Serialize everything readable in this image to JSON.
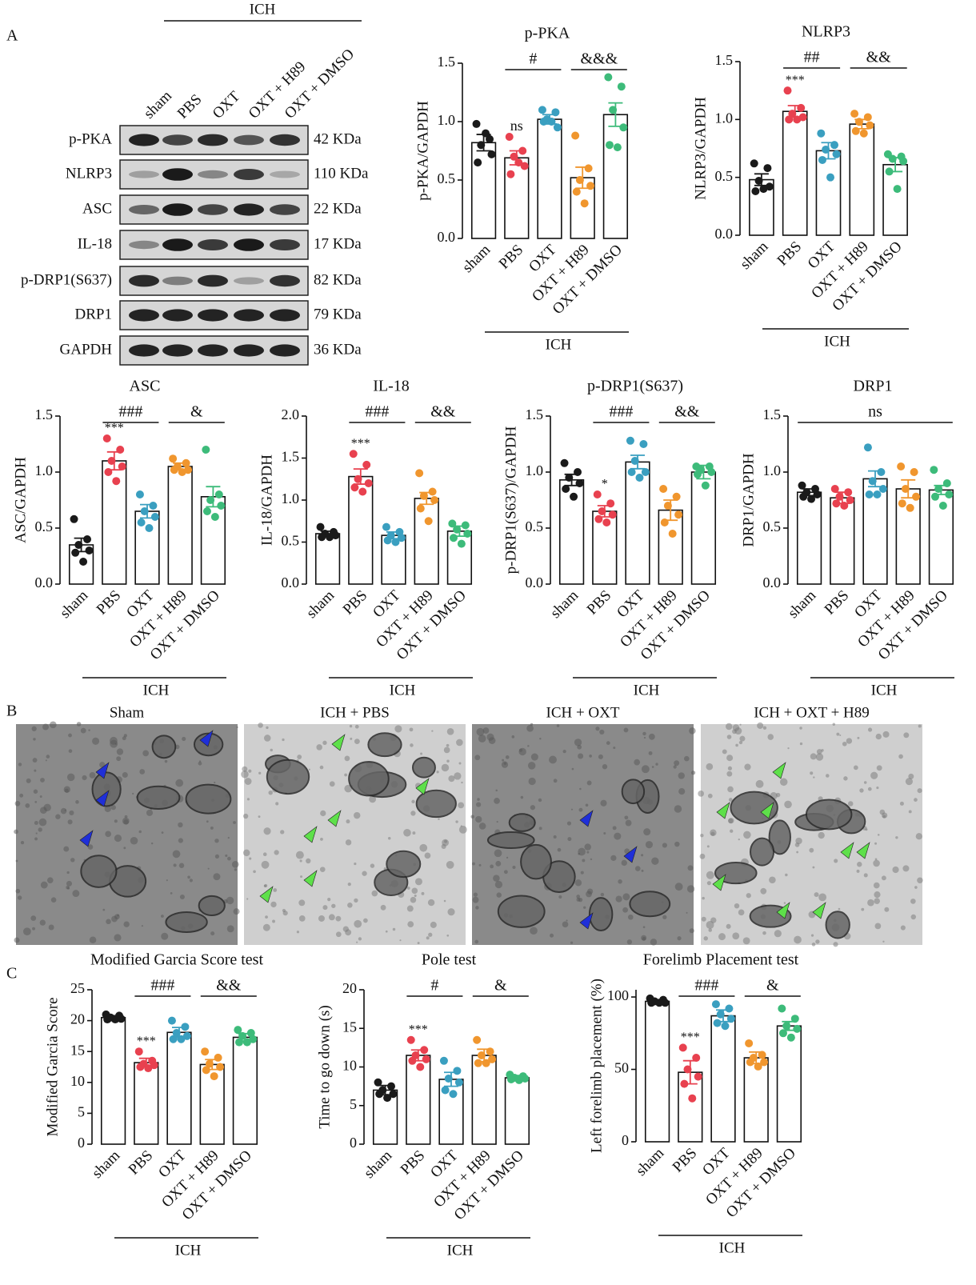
{
  "panel_labels": [
    "A",
    "B",
    "C"
  ],
  "blot": {
    "group_label": "ICH",
    "lanes": [
      "sham",
      "PBS",
      "OXT",
      "OXT + H89",
      "OXT + DMSO"
    ],
    "rows": [
      {
        "name": "p-PKA",
        "size": "42 KDa"
      },
      {
        "name": "NLRP3",
        "size": "110 KDa"
      },
      {
        "name": "ASC",
        "size": "22 KDa"
      },
      {
        "name": "IL-18",
        "size": "17 KDa"
      },
      {
        "name": "p-DRP1(S637)",
        "size": "82 KDa"
      },
      {
        "name": "DRP1",
        "size": "79 KDa"
      },
      {
        "name": "GAPDH",
        "size": "36 KDa"
      }
    ]
  },
  "em": {
    "titles": [
      "Sham",
      "ICH + PBS",
      "ICH + OXT",
      "ICH + OXT + H89"
    ]
  },
  "chart_data": [
    {
      "type": "bar",
      "title": "p-PKA",
      "ylabel": "p-PKA/GAPDH",
      "group_label": "ICH",
      "categories": [
        "sham",
        "PBS",
        "OXT",
        "OXT + H89",
        "OXT + DMSO"
      ],
      "colors": [
        "#1a1a1a",
        "#e8414f",
        "#3a9fc0",
        "#f0962e",
        "#3dbb7a"
      ],
      "values": [
        0.82,
        0.69,
        1.02,
        0.52,
        1.06
      ],
      "errors": [
        0.07,
        0.06,
        0.04,
        0.09,
        0.1
      ],
      "points": [
        [
          0.98,
          0.85,
          0.8,
          0.72,
          0.65,
          0.9
        ],
        [
          0.87,
          0.75,
          0.7,
          0.62,
          0.55,
          0.65
        ],
        [
          1.1,
          1.08,
          1.02,
          0.95,
          1.0,
          1.0
        ],
        [
          0.88,
          0.6,
          0.5,
          0.45,
          0.4,
          0.3
        ],
        [
          1.38,
          1.3,
          1.1,
          0.95,
          0.8,
          0.78
        ]
      ],
      "marks": [
        null,
        "ns",
        null,
        null,
        null
      ],
      "spans": [
        {
          "text": "#",
          "from": 1,
          "to": 2
        },
        {
          "text": "&&&",
          "from": 3,
          "to": 4
        }
      ],
      "ylim": [
        0,
        1.5
      ],
      "yticks": [
        {
          "value": 0,
          "label": "0.0"
        },
        0.5,
        {
          "value": 1,
          "label": "1.0"
        },
        1.5
      ]
    },
    {
      "type": "bar",
      "title": "NLRP3",
      "ylabel": "NLRP3/GAPDH",
      "group_label": "ICH",
      "categories": [
        "sham",
        "PBS",
        "OXT",
        "OXT + H89",
        "OXT + DMSO"
      ],
      "colors": [
        "#1a1a1a",
        "#e8414f",
        "#3a9fc0",
        "#f0962e",
        "#3dbb7a"
      ],
      "values": [
        0.48,
        1.07,
        0.73,
        0.96,
        0.61
      ],
      "errors": [
        0.05,
        0.05,
        0.07,
        0.04,
        0.06
      ],
      "points": [
        [
          0.62,
          0.58,
          0.47,
          0.42,
          0.38,
          0.4
        ],
        [
          1.25,
          1.1,
          1.05,
          1.02,
          1.0,
          1.0
        ],
        [
          0.88,
          0.78,
          0.74,
          0.7,
          0.65,
          0.5
        ],
        [
          1.05,
          1.02,
          0.98,
          0.95,
          0.9,
          0.88
        ],
        [
          0.7,
          0.68,
          0.66,
          0.64,
          0.55,
          0.4
        ]
      ],
      "marks": [
        null,
        "***",
        null,
        null,
        null
      ],
      "spans": [
        {
          "text": "##",
          "from": 1,
          "to": 2
        },
        {
          "text": "&&",
          "from": 3,
          "to": 4
        }
      ],
      "ylim": [
        0,
        1.5
      ],
      "yticks": [
        {
          "value": 0,
          "label": "0.0"
        },
        0.5,
        {
          "value": 1,
          "label": "1.0"
        },
        1.5
      ]
    },
    {
      "type": "bar",
      "title": "ASC",
      "ylabel": "ASC/GAPDH",
      "group_label": "ICH",
      "categories": [
        "sham",
        "PBS",
        "OXT",
        "OXT + H89",
        "OXT + DMSO"
      ],
      "colors": [
        "#1a1a1a",
        "#e8414f",
        "#3a9fc0",
        "#f0962e",
        "#3dbb7a"
      ],
      "values": [
        0.35,
        1.1,
        0.65,
        1.05,
        0.78
      ],
      "errors": [
        0.06,
        0.08,
        0.06,
        0.03,
        0.09
      ],
      "points": [
        [
          0.58,
          0.4,
          0.35,
          0.3,
          0.28,
          0.2
        ],
        [
          1.3,
          1.2,
          1.1,
          1.05,
          1.0,
          0.92
        ],
        [
          0.8,
          0.7,
          0.65,
          0.6,
          0.55,
          0.5
        ],
        [
          1.12,
          1.08,
          1.05,
          1.02,
          1.02,
          1.0
        ],
        [
          1.2,
          0.8,
          0.75,
          0.7,
          0.65,
          0.6
        ]
      ],
      "marks": [
        null,
        "***",
        null,
        null,
        null
      ],
      "spans": [
        {
          "text": "###",
          "from": 1,
          "to": 2
        },
        {
          "text": "&",
          "from": 3,
          "to": 4
        }
      ],
      "ylim": [
        0,
        1.5
      ],
      "yticks": [
        {
          "value": 0,
          "label": "0.0"
        },
        0.5,
        {
          "value": 1,
          "label": "1.0"
        },
        1.5
      ]
    },
    {
      "type": "bar",
      "title": "IL-18",
      "ylabel": "IL-18/GAPDH",
      "group_label": "ICH",
      "categories": [
        "sham",
        "PBS",
        "OXT",
        "OXT + H89",
        "OXT + DMSO"
      ],
      "colors": [
        "#1a1a1a",
        "#e8414f",
        "#3a9fc0",
        "#f0962e",
        "#3dbb7a"
      ],
      "values": [
        0.6,
        1.28,
        0.58,
        1.02,
        0.63
      ],
      "errors": [
        0.03,
        0.09,
        0.04,
        0.07,
        0.06
      ],
      "points": [
        [
          0.68,
          0.62,
          0.6,
          0.58,
          0.56,
          0.56
        ],
        [
          1.55,
          1.42,
          1.25,
          1.2,
          1.15,
          1.1
        ],
        [
          0.68,
          0.62,
          0.58,
          0.55,
          0.52,
          0.5
        ],
        [
          1.32,
          1.1,
          1.05,
          1.0,
          0.9,
          0.75
        ],
        [
          0.72,
          0.7,
          0.65,
          0.6,
          0.55,
          0.48
        ]
      ],
      "marks": [
        null,
        "***",
        null,
        null,
        null
      ],
      "spans": [
        {
          "text": "###",
          "from": 1,
          "to": 2
        },
        {
          "text": "&&",
          "from": 3,
          "to": 4
        }
      ],
      "ylim": [
        0,
        2
      ],
      "yticks": [
        {
          "value": 0,
          "label": "0.0"
        },
        0.5,
        {
          "value": 1,
          "label": "1.0"
        },
        1.5,
        {
          "value": 2,
          "label": "2.0"
        }
      ]
    },
    {
      "type": "bar",
      "title": "p-DRP1(S637)",
      "ylabel": "p-DRP1(S637)/GAPDH",
      "group_label": "ICH",
      "categories": [
        "sham",
        "PBS",
        "OXT",
        "OXT + H89",
        "OXT + DMSO"
      ],
      "colors": [
        "#1a1a1a",
        "#e8414f",
        "#3a9fc0",
        "#f0962e",
        "#3dbb7a"
      ],
      "values": [
        0.93,
        0.65,
        1.09,
        0.66,
        1.0
      ],
      "errors": [
        0.05,
        0.05,
        0.06,
        0.09,
        0.06
      ],
      "points": [
        [
          1.08,
          1.0,
          0.95,
          0.9,
          0.85,
          0.78
        ],
        [
          0.8,
          0.72,
          0.65,
          0.62,
          0.58,
          0.55
        ],
        [
          1.28,
          1.25,
          1.1,
          1.0,
          1.0,
          0.95
        ],
        [
          0.85,
          0.78,
          0.7,
          0.62,
          0.55,
          0.45
        ],
        [
          1.05,
          1.05,
          1.02,
          1.0,
          0.98,
          0.88
        ]
      ],
      "marks": [
        null,
        "*",
        null,
        null,
        null
      ],
      "spans": [
        {
          "text": "###",
          "from": 1,
          "to": 2
        },
        {
          "text": "&&",
          "from": 3,
          "to": 4
        }
      ],
      "ylim": [
        0,
        1.5
      ],
      "yticks": [
        {
          "value": 0,
          "label": "0.0"
        },
        0.5,
        {
          "value": 1,
          "label": "1.0"
        },
        1.5
      ]
    },
    {
      "type": "bar",
      "title": "DRP1",
      "ylabel": "DRP1/GAPDH",
      "group_label": "ICH",
      "categories": [
        "sham",
        "PBS",
        "OXT",
        "OXT + H89",
        "OXT + DMSO"
      ],
      "colors": [
        "#1a1a1a",
        "#e8414f",
        "#3a9fc0",
        "#f0962e",
        "#3dbb7a"
      ],
      "values": [
        0.82,
        0.77,
        0.94,
        0.85,
        0.84
      ],
      "errors": [
        0.03,
        0.05,
        0.07,
        0.08,
        0.04
      ],
      "points": [
        [
          0.88,
          0.85,
          0.82,
          0.8,
          0.78,
          0.76
        ],
        [
          0.85,
          0.82,
          0.78,
          0.75,
          0.72,
          0.7
        ],
        [
          1.22,
          1.0,
          0.92,
          0.85,
          0.8,
          0.8
        ],
        [
          1.05,
          1.0,
          0.85,
          0.78,
          0.72,
          0.68
        ],
        [
          1.02,
          0.9,
          0.85,
          0.8,
          0.78,
          0.7
        ]
      ],
      "marks": [
        null,
        null,
        null,
        null,
        null
      ],
      "spans": [
        {
          "text": "ns",
          "from": 0,
          "to": 4
        }
      ],
      "ylim": [
        0,
        1.5
      ],
      "yticks": [
        {
          "value": 0,
          "label": "0.0"
        },
        0.5,
        {
          "value": 1,
          "label": "1.0"
        },
        1.5
      ]
    },
    {
      "type": "bar",
      "title": "Modified Garcia Score test",
      "ylabel": "Modified Garcia Score",
      "group_label": "ICH",
      "categories": [
        "sham",
        "PBS",
        "OXT",
        "OXT + H89",
        "OXT + DMSO"
      ],
      "colors": [
        "#1a1a1a",
        "#e8414f",
        "#3a9fc0",
        "#f0962e",
        "#3dbb7a"
      ],
      "values": [
        20.5,
        13.2,
        18.1,
        12.9,
        17.3
      ],
      "errors": [
        0.3,
        0.7,
        0.8,
        0.8,
        0.6
      ],
      "points": [
        [
          21,
          20.8,
          20.5,
          20.3,
          20.2,
          20.2
        ],
        [
          15,
          13.5,
          13,
          12.8,
          12.5,
          12.3
        ],
        [
          20,
          19,
          18,
          17.5,
          17,
          17
        ],
        [
          15,
          14,
          13,
          12.5,
          12,
          11
        ],
        [
          18.5,
          18,
          17.5,
          17,
          16.5,
          16.5
        ]
      ],
      "marks": [
        null,
        "***",
        null,
        null,
        null
      ],
      "spans": [
        {
          "text": "###",
          "from": 1,
          "to": 2
        },
        {
          "text": "&&",
          "from": 3,
          "to": 4
        }
      ],
      "ylim": [
        0,
        25
      ],
      "yticks": [
        0,
        5,
        10,
        15,
        20,
        25
      ]
    },
    {
      "type": "bar",
      "title": "Pole test",
      "ylabel": "Time to go down (s)",
      "group_label": "ICH",
      "categories": [
        "sham",
        "PBS",
        "OXT",
        "OXT + H89",
        "OXT + DMSO"
      ],
      "colors": [
        "#1a1a1a",
        "#e8414f",
        "#3a9fc0",
        "#f0962e",
        "#3dbb7a"
      ],
      "values": [
        7.0,
        11.5,
        8.4,
        11.5,
        8.6
      ],
      "errors": [
        0.6,
        0.7,
        0.9,
        0.8,
        0.3
      ],
      "points": [
        [
          8,
          7.5,
          7,
          6.5,
          6.5,
          6
        ],
        [
          13.5,
          12.2,
          11.5,
          11,
          10.8,
          10
        ],
        [
          10.8,
          9.5,
          8.5,
          8,
          7,
          6.5
        ],
        [
          13.5,
          12,
          11.5,
          11,
          10.5,
          10.5
        ],
        [
          9,
          8.8,
          8.6,
          8.5,
          8.4,
          8.3
        ]
      ],
      "marks": [
        null,
        "***",
        null,
        null,
        null
      ],
      "spans": [
        {
          "text": "#",
          "from": 1,
          "to": 2
        },
        {
          "text": "&",
          "from": 3,
          "to": 4
        }
      ],
      "ylim": [
        0,
        20
      ],
      "yticks": [
        0,
        5,
        10,
        15,
        20
      ]
    },
    {
      "type": "bar",
      "title": "Forelimb Placement test",
      "ylabel": "Left forelimb placement (%)",
      "group_label": "ICH",
      "categories": [
        "sham",
        "PBS",
        "OXT",
        "OXT + H89",
        "OXT + DMSO"
      ],
      "colors": [
        "#1a1a1a",
        "#e8414f",
        "#3a9fc0",
        "#f0962e",
        "#3dbb7a"
      ],
      "values": [
        97,
        48,
        87,
        58,
        80
      ],
      "errors": [
        1,
        8,
        4,
        4,
        3
      ],
      "points": [
        [
          99,
          98,
          97,
          96,
          96,
          96
        ],
        [
          65,
          58,
          50,
          45,
          40,
          30
        ],
        [
          95,
          92,
          88,
          85,
          82,
          80
        ],
        [
          68,
          60,
          58,
          55,
          55,
          52
        ],
        [
          92,
          85,
          80,
          78,
          75,
          72
        ]
      ],
      "marks": [
        null,
        "***",
        null,
        null,
        null
      ],
      "spans": [
        {
          "text": "###",
          "from": 1,
          "to": 2
        },
        {
          "text": "&",
          "from": 3,
          "to": 4
        }
      ],
      "ylim": [
        0,
        105
      ],
      "yticks": [
        0,
        50,
        100
      ]
    }
  ]
}
